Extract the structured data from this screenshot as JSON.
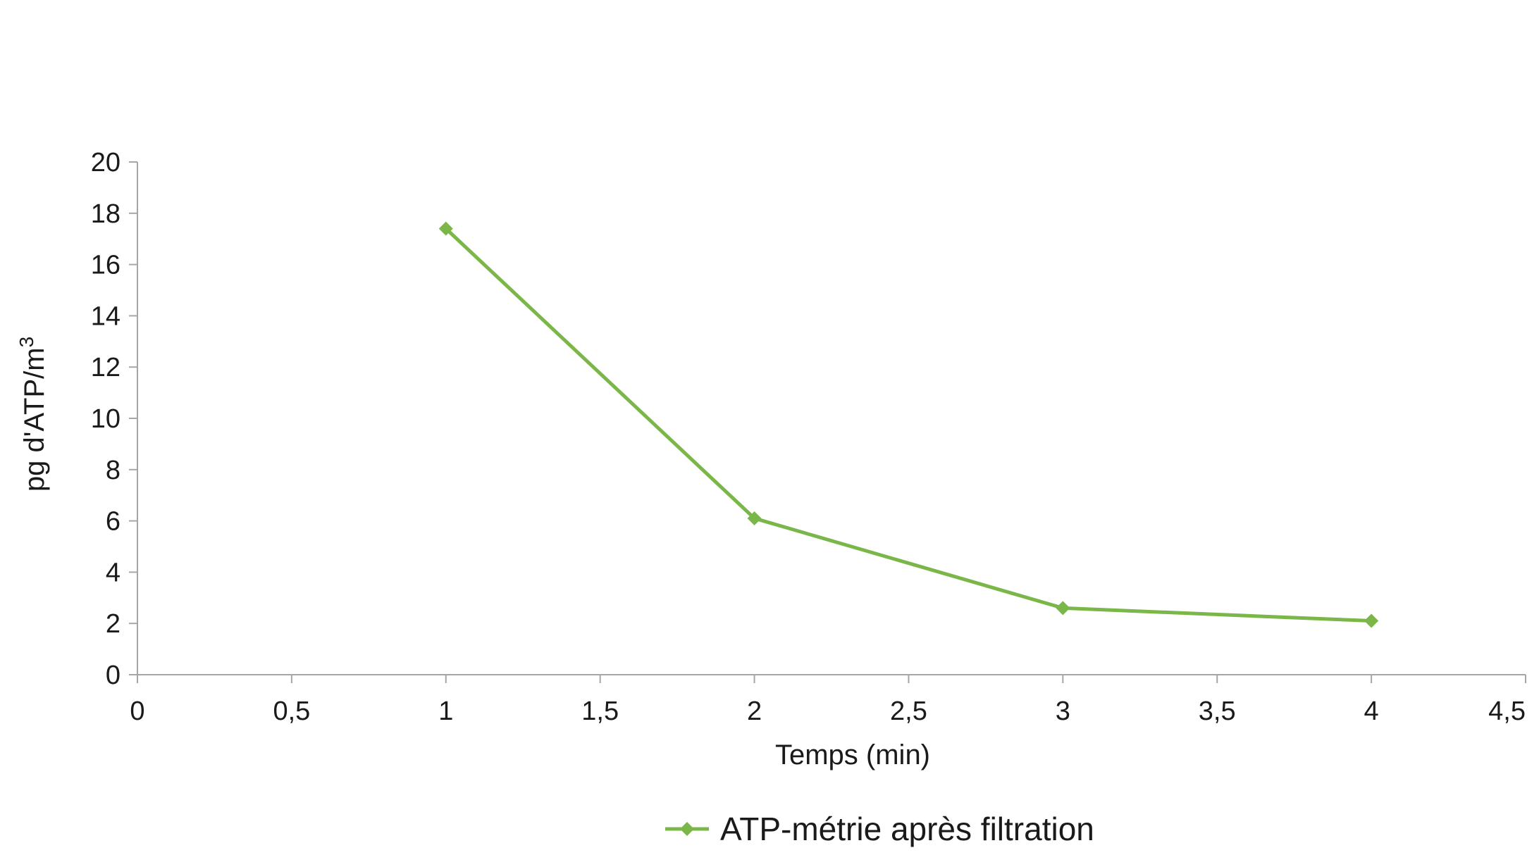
{
  "chart_data": {
    "type": "line",
    "title": "",
    "xlabel": "Temps (min)",
    "ylabel": "pg d'ATP/m",
    "ylabel_superscript": "3",
    "xlim": [
      0,
      4.5
    ],
    "ylim": [
      0,
      20
    ],
    "x_ticks": [
      "0",
      "0,5",
      "1",
      "1,5",
      "2",
      "2,5",
      "3",
      "3,5",
      "4",
      "4,5"
    ],
    "y_ticks": [
      "0",
      "2",
      "4",
      "6",
      "8",
      "10",
      "12",
      "14",
      "16",
      "18",
      "20"
    ],
    "grid": false,
    "legend_position": "bottom",
    "series": [
      {
        "name": "ATP-métrie après filtration",
        "color": "#7ab648",
        "marker": "diamond",
        "x": [
          1,
          2,
          3,
          4
        ],
        "y": [
          17.4,
          6.1,
          2.6,
          2.1
        ]
      }
    ]
  }
}
